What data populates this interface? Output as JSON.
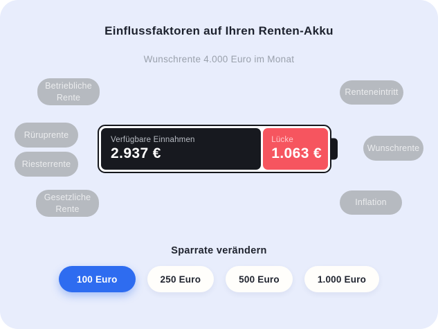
{
  "header": {
    "title": "Einflussfaktoren auf Ihren Renten-Akku",
    "subtitle": "Wunschrente 4.000 Euro im Monat"
  },
  "factors": {
    "items": [
      {
        "id": "betriebliche-rente",
        "label": "Betriebliche Rente"
      },
      {
        "id": "rueruprente",
        "label": "Rüruprente"
      },
      {
        "id": "riesterrente",
        "label": "Riesterrente"
      },
      {
        "id": "gesetzliche-rente",
        "label": "Gesetzliche Rente"
      },
      {
        "id": "renteneintritt",
        "label": "Renteneintritt"
      },
      {
        "id": "wunschrente",
        "label": "Wunschrente"
      },
      {
        "id": "inflation",
        "label": "Inflation"
      }
    ]
  },
  "battery": {
    "available": {
      "label": "Verfügbare Einnahmen",
      "value": "2.937 €"
    },
    "gap": {
      "label": "Lücke",
      "value": "1.063 €"
    }
  },
  "savings": {
    "heading": "Sparrate verändern",
    "options": [
      {
        "label": "100 Euro",
        "selected": true
      },
      {
        "label": "250 Euro",
        "selected": false
      },
      {
        "label": "500 Euro",
        "selected": false
      },
      {
        "label": "1.000 Euro",
        "selected": false
      }
    ]
  },
  "colors": {
    "panel_background": "#e8edfc",
    "factor_pill_gray": "#b6bac0",
    "battery_black": "#17191f",
    "battery_outline": "#15171c",
    "gap_red": "#f6555f",
    "accent_blue": "#2e6cf0",
    "title_dark": "#1d222e",
    "subtitle_gray": "#9aa1ac"
  }
}
